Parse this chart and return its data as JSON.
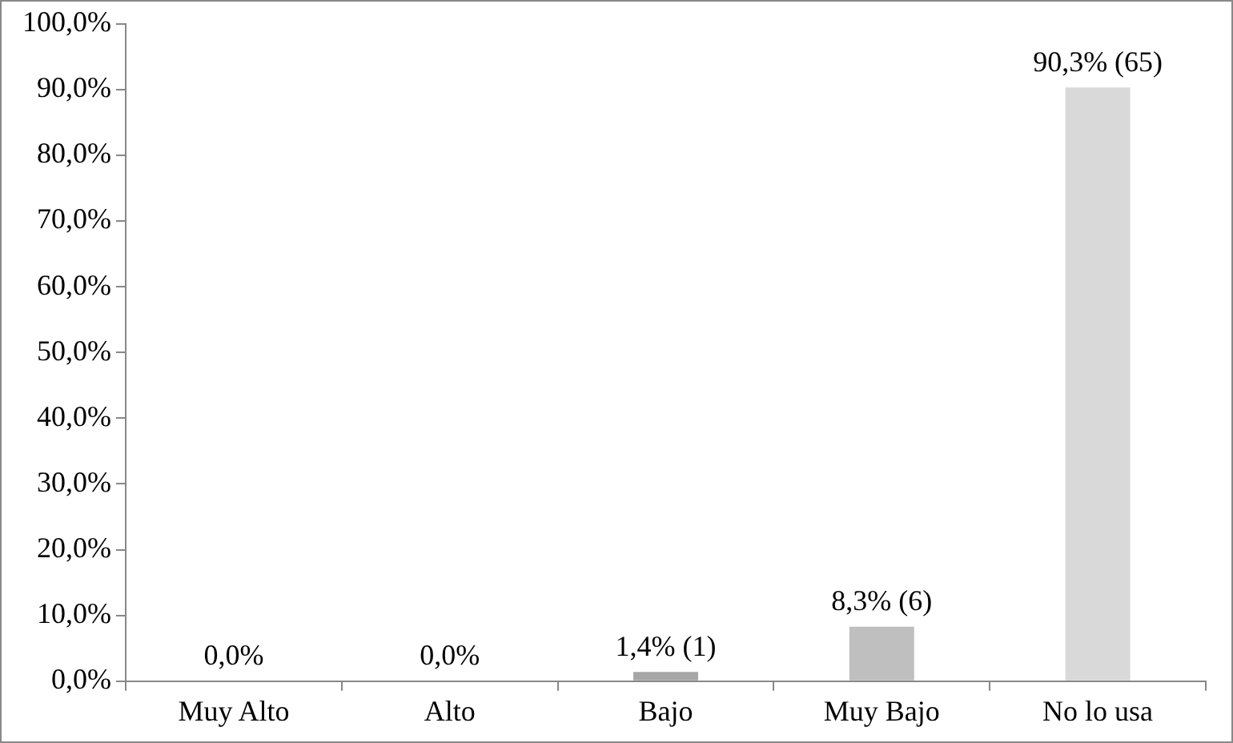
{
  "chart_data": {
    "type": "bar",
    "categories": [
      "Muy Alto",
      "Alto",
      "Bajo",
      "Muy Bajo",
      "No lo usa"
    ],
    "values": [
      0,
      0,
      1.4,
      8.3,
      90.3
    ],
    "colors": [
      "#a6a6a6",
      "#a6a6a6",
      "#a6a6a6",
      "#bfbfbf",
      "#d9d9d9"
    ],
    "value_labels": [
      "0,0%",
      "0,0%",
      "1,4% (1)",
      "8,3% (6)",
      "90,3% (65)"
    ],
    "ylim": [
      0,
      100
    ],
    "yticks": [
      {
        "value": 0,
        "label": "0,0%"
      },
      {
        "value": 10,
        "label": "10,0%"
      },
      {
        "value": 20,
        "label": "20,0%"
      },
      {
        "value": 30,
        "label": "30,0%"
      },
      {
        "value": 40,
        "label": "40,0%"
      },
      {
        "value": 50,
        "label": "50,0%"
      },
      {
        "value": 60,
        "label": "60,0%"
      },
      {
        "value": 70,
        "label": "70,0%"
      },
      {
        "value": 80,
        "label": "80,0%"
      },
      {
        "value": 90,
        "label": "90,0%"
      },
      {
        "value": 100,
        "label": "100,0%"
      }
    ],
    "grid": false,
    "legend": false
  }
}
